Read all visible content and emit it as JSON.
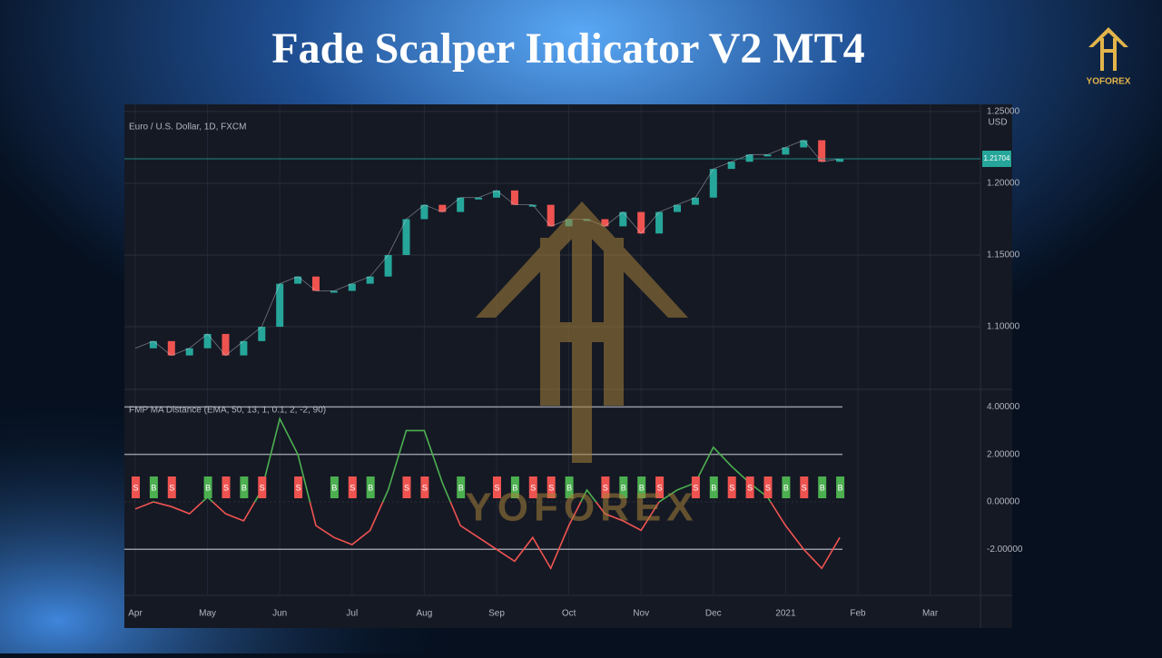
{
  "header": {
    "title": "Fade Scalper Indicator  V2  MT4",
    "logo_text": "YOFOREX",
    "watermark": "YOFOREX"
  },
  "chart_data": [
    {
      "type": "line",
      "title": "Euro / U.S. Dollar, 1D, FXCM",
      "y_label": "USD",
      "color": "#ef5350",
      "up_color": "#26a69a",
      "categories": [
        "Apr",
        null,
        null,
        null,
        "May",
        null,
        null,
        null,
        "Jun",
        null,
        null,
        null,
        "Jul",
        null,
        null,
        null,
        "Aug",
        null,
        null,
        null,
        "Sep",
        null,
        null,
        null,
        "Oct",
        null,
        null,
        null,
        "Nov",
        null,
        null,
        null,
        "Dec",
        null,
        null,
        null,
        "2021",
        null,
        null,
        null,
        "Feb",
        null,
        null,
        null,
        "Mar",
        null,
        null,
        null
      ],
      "values": [
        1.085,
        1.09,
        1.08,
        1.085,
        1.095,
        1.08,
        1.09,
        1.1,
        1.13,
        1.135,
        1.125,
        1.125,
        1.13,
        1.135,
        1.15,
        1.175,
        1.185,
        1.18,
        1.19,
        1.19,
        1.195,
        1.185,
        1.185,
        1.17,
        1.175,
        1.175,
        1.17,
        1.18,
        1.165,
        1.18,
        1.185,
        1.19,
        1.21,
        1.215,
        1.22,
        1.22,
        1.225,
        1.23,
        1.215,
        1.217,
        null,
        null,
        null,
        null,
        null,
        null,
        null,
        null
      ],
      "last_price": {
        "value": 1.21704,
        "label": "1.21704"
      },
      "ylim": [
        1.057,
        1.255
      ],
      "yticks": [
        {
          "value": 1.1,
          "label": "1.10000"
        },
        {
          "value": 1.15,
          "label": "1.15000"
        },
        {
          "value": 1.2,
          "label": "1.20000"
        },
        {
          "value": 1.25,
          "label": "1.25000"
        }
      ],
      "grid": true
    },
    {
      "type": "line",
      "title": "FMP MA Distance (EMA, 50, 13, 1, 0.1, 2, -2, 90)",
      "up_color": "#4caf50",
      "down_color": "#ef5350",
      "values": [
        -0.3,
        0,
        -0.2,
        -0.5,
        0.2,
        -0.5,
        -0.8,
        0.5,
        3.5,
        2.0,
        -1.0,
        -1.5,
        -1.8,
        -1.2,
        0.5,
        3.0,
        3.0,
        0.8,
        -1.0,
        -1.5,
        -2.0,
        -2.5,
        -1.5,
        -2.8,
        -1.0,
        0.5,
        -0.5,
        -0.8,
        -1.2,
        0,
        0.5,
        0.8,
        2.3,
        1.5,
        0.8,
        0.2,
        -1.0,
        -2.0,
        -2.8,
        -1.5,
        null,
        null,
        null,
        null,
        null,
        null,
        null,
        null
      ],
      "signals": [
        "S",
        "B",
        "S",
        null,
        "B",
        "S",
        "B",
        "S",
        null,
        "S",
        null,
        "B",
        "S",
        "B",
        null,
        "S",
        "S",
        null,
        "B",
        null,
        "S",
        "B",
        "S",
        "S",
        "B",
        null,
        "S",
        "B",
        "B",
        "S",
        null,
        "S",
        "B",
        "S",
        "S",
        "S",
        "B",
        "S",
        "B",
        "B",
        null,
        null,
        null,
        null,
        null,
        null,
        null,
        null
      ],
      "ylim": [
        -3.9,
        4.7
      ],
      "yticks": [
        {
          "value": 4,
          "label": "4.00000"
        },
        {
          "value": 2,
          "label": "2.00000"
        },
        {
          "value": 0,
          "label": "0.00000"
        },
        {
          "value": -2,
          "label": "-2.00000"
        }
      ],
      "grid": true
    }
  ]
}
